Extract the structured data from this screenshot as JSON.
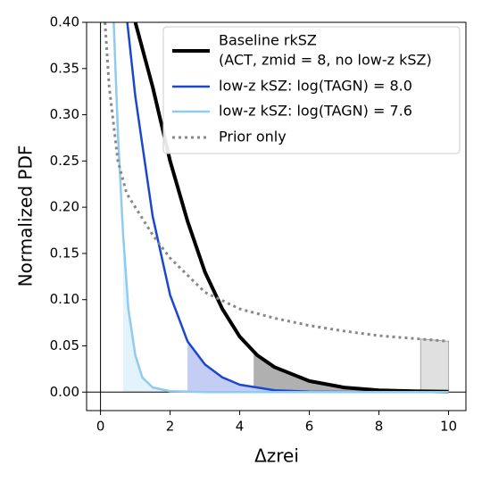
{
  "chart_data": {
    "type": "line",
    "xlabel": "Δzrei",
    "ylabel": "Normalized PDF",
    "xlim": [
      -0.4,
      10.5
    ],
    "ylim": [
      -0.02,
      0.4
    ],
    "xticks": [
      0,
      2,
      4,
      6,
      8,
      10
    ],
    "yticks": [
      {
        "value": 0,
        "label": "0.00"
      },
      {
        "value": 0.05,
        "label": "0.05"
      },
      {
        "value": 0.1,
        "label": "0.10"
      },
      {
        "value": 0.15,
        "label": "0.15"
      },
      {
        "value": 0.2,
        "label": "0.20"
      },
      {
        "value": 0.25,
        "label": "0.25"
      },
      {
        "value": 0.3,
        "label": "0.30"
      },
      {
        "value": 0.35,
        "label": "0.35"
      },
      {
        "value": 0.4,
        "label": "0.40"
      }
    ],
    "legend": "upper right",
    "series": [
      {
        "name": "Baseline rkSZ",
        "legend_note": "(ACT, zmid = 8, no low-z kSZ)",
        "color": "#000000",
        "style": "solid",
        "width": 4,
        "shade_from": 4.4,
        "shade_color": "#b0b0b0",
        "x": [
          1.0,
          1.5,
          2,
          2.5,
          3,
          3.5,
          4,
          4.5,
          5,
          6,
          7,
          8,
          9,
          10
        ],
        "values": [
          0.4,
          0.33,
          0.25,
          0.185,
          0.13,
          0.09,
          0.06,
          0.04,
          0.027,
          0.012,
          0.005,
          0.002,
          0.001,
          0.0005
        ]
      },
      {
        "name": "low-z kSZ: log(TAGN) = 8.0",
        "color": "#1a47cc",
        "style": "solid",
        "width": 2.5,
        "shade_from": 2.5,
        "shade_color": "#c4cdf4",
        "x": [
          0.77,
          1.0,
          1.5,
          2,
          2.5,
          3,
          3.5,
          4,
          5,
          6,
          8,
          10
        ],
        "values": [
          0.4,
          0.32,
          0.19,
          0.105,
          0.055,
          0.03,
          0.016,
          0.008,
          0.002,
          0.0005,
          0,
          0
        ]
      },
      {
        "name": "low-z kSZ: log(TAGN) = 7.6",
        "color": "#8fcbee",
        "style": "solid",
        "width": 2.5,
        "shade_from": 0.65,
        "shade_color": "#e3f3fc",
        "x": [
          0.38,
          0.5,
          0.65,
          0.8,
          1.0,
          1.2,
          1.5,
          2,
          3,
          10
        ],
        "values": [
          0.4,
          0.28,
          0.17,
          0.09,
          0.04,
          0.016,
          0.005,
          0.001,
          0,
          0
        ]
      },
      {
        "name": "Prior only",
        "color": "#888888",
        "style": "dotted",
        "width": 3,
        "shade_from": 9.2,
        "shade_color": "#e0e0e0",
        "x": [
          0.13,
          0.25,
          0.5,
          0.75,
          1,
          1.5,
          2,
          3,
          4,
          5,
          6,
          7,
          8,
          9,
          10
        ],
        "values": [
          0.4,
          0.33,
          0.25,
          0.215,
          0.2,
          0.17,
          0.145,
          0.108,
          0.09,
          0.08,
          0.072,
          0.066,
          0.061,
          0.058,
          0.055
        ]
      }
    ]
  }
}
